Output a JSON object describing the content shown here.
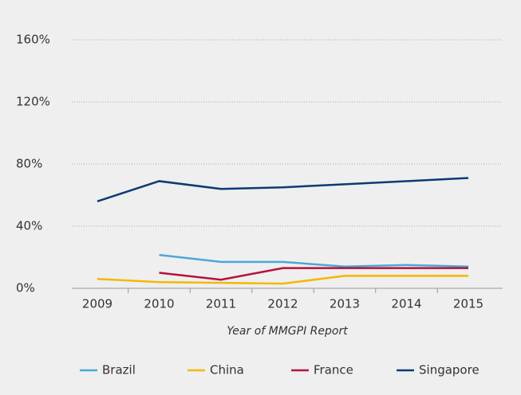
{
  "chart_data": {
    "type": "line",
    "x_label": "Year of MMGPI Report",
    "categories": [
      "2009",
      "2010",
      "2011",
      "2012",
      "2013",
      "2014",
      "2015"
    ],
    "series": [
      {
        "name": "Brazil",
        "color": "#4aa8d8",
        "values": [
          null,
          21.5,
          17,
          17,
          14,
          15,
          14
        ]
      },
      {
        "name": "China",
        "color": "#f5b800",
        "values": [
          6,
          4,
          3.5,
          3,
          8,
          8,
          8
        ]
      },
      {
        "name": "France",
        "color": "#b5123e",
        "values": [
          null,
          10,
          5.5,
          13,
          13,
          13,
          13
        ]
      },
      {
        "name": "Singapore",
        "color": "#0b3b72",
        "values": [
          56,
          69,
          64,
          65,
          67,
          69,
          71
        ]
      }
    ],
    "ylim": [
      0,
      160
    ],
    "yticks": [
      {
        "value": 0,
        "label": "0%"
      },
      {
        "value": 40,
        "label": "40%"
      },
      {
        "value": 80,
        "label": "80%"
      },
      {
        "value": 120,
        "label": "120%"
      },
      {
        "value": 160,
        "label": "160%"
      }
    ],
    "grid": true,
    "legend": "bottom"
  }
}
